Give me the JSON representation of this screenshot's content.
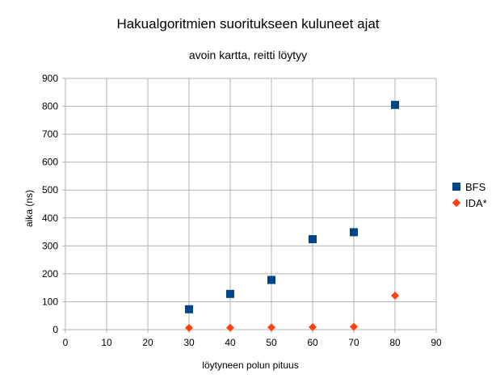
{
  "chart_data": {
    "type": "scatter",
    "title": "Hakualgoritmien suoritukseen kuluneet ajat",
    "subtitle": "avoin kartta, reitti löytyy",
    "xlabel": "löytyneen polun pituus",
    "ylabel": "aika (ns)",
    "xlim": [
      0,
      90
    ],
    "ylim": [
      0,
      900
    ],
    "xticks": [
      0,
      10,
      20,
      30,
      40,
      50,
      60,
      70,
      80,
      90
    ],
    "yticks": [
      0,
      100,
      200,
      300,
      400,
      500,
      600,
      700,
      800,
      900
    ],
    "grid": true,
    "legend_position": "right",
    "series": [
      {
        "name": "BFS",
        "marker": "square",
        "color": "#004586",
        "points": [
          [
            30,
            73
          ],
          [
            40,
            128
          ],
          [
            50,
            178
          ],
          [
            60,
            324
          ],
          [
            70,
            349
          ],
          [
            80,
            805
          ]
        ]
      },
      {
        "name": "IDA*",
        "marker": "diamond",
        "color": "#ff420e",
        "points": [
          [
            30,
            6
          ],
          [
            40,
            7
          ],
          [
            50,
            8
          ],
          [
            60,
            9
          ],
          [
            70,
            10
          ],
          [
            80,
            122
          ]
        ]
      }
    ]
  }
}
